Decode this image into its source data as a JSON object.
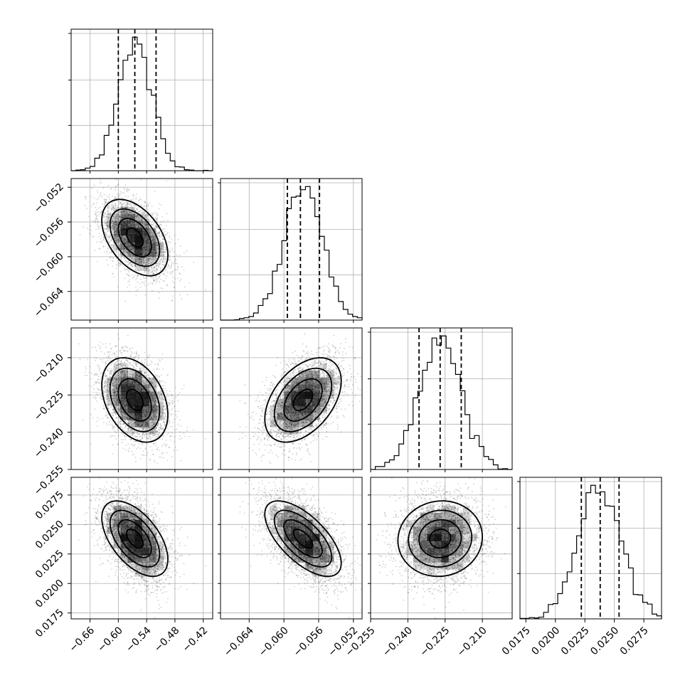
{
  "chart_data": {
    "type": "corner",
    "n_parameters": 4,
    "parameters": [
      {
        "index": 0,
        "mean": -0.565,
        "sigma": 0.035,
        "range": [
          -0.7,
          -0.4
        ],
        "ticks": [
          -0.66,
          -0.6,
          -0.54,
          -0.48,
          -0.42
        ],
        "tick_labels": [
          "−0.66",
          "−0.60",
          "−0.54",
          "−0.48",
          "−0.42"
        ],
        "quantiles": [
          -0.6,
          -0.565,
          -0.52
        ]
      },
      {
        "index": 1,
        "mean": -0.0578,
        "sigma": 0.0022,
        "range": [
          -0.0673,
          -0.051
        ],
        "ticks": [
          -0.064,
          -0.06,
          -0.056,
          -0.052
        ],
        "tick_labels": [
          "−0.064",
          "−0.060",
          "−0.056",
          "−0.052"
        ],
        "quantiles": [
          -0.0596,
          -0.0581,
          -0.0559
        ]
      },
      {
        "index": 2,
        "mean": -0.227,
        "sigma": 0.0085,
        "range": [
          -0.255,
          -0.198
        ],
        "ticks": [
          -0.255,
          -0.24,
          -0.225,
          -0.21
        ],
        "tick_labels": [
          "−0.255",
          "−0.240",
          "−0.225",
          "−0.210"
        ],
        "quantiles": [
          -0.2355,
          -0.227,
          -0.2185
        ]
      },
      {
        "index": 3,
        "mean": 0.0238,
        "sigma": 0.0016,
        "range": [
          0.017,
          0.029
        ],
        "ticks": [
          0.0175,
          0.02,
          0.0225,
          0.025,
          0.0275
        ],
        "tick_labels": [
          "0.0175",
          "0.0200",
          "0.0225",
          "0.0250",
          "0.0275"
        ],
        "quantiles": [
          0.0222,
          0.0238,
          0.0254
        ]
      }
    ],
    "correlations": {
      "1-0": -0.45,
      "2-0": -0.35,
      "2-1": 0.45,
      "3-0": -0.55,
      "3-1": -0.65,
      "3-2": 0.05
    },
    "histogram_bins": 30,
    "grid": true,
    "diagonal": "1D marginal histograms with 16/50/84% quantile dashed lines",
    "off_diagonal": "2D density with scatter points, shaded bins and contours"
  }
}
